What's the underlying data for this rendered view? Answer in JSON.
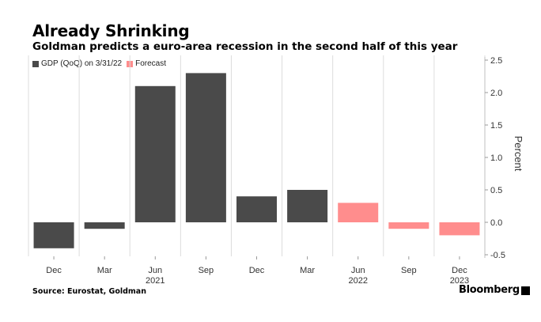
{
  "title": "Already Shrinking",
  "subtitle": "Goldman predicts a euro-area recession in the second half of this year",
  "legend": [
    {
      "label": "GDP (QoQ) on 3/31/22",
      "color": "#4a4a4a"
    },
    {
      "label": "Forecast",
      "color": "#ff8d8d"
    }
  ],
  "source": "Source: Eurostat, Goldman",
  "brand": "Bloomberg",
  "chart_data": {
    "type": "bar",
    "categories": [
      "Dec",
      "Mar",
      "Jun",
      "Sep",
      "Dec",
      "Mar",
      "Jun",
      "Sep",
      "Dec"
    ],
    "year_labels": [
      {
        "index": 2,
        "label": "2021"
      },
      {
        "index": 6,
        "label": "2022"
      },
      {
        "index": 8,
        "label": "2023"
      }
    ],
    "values": [
      -0.4,
      -0.1,
      2.1,
      2.3,
      0.4,
      0.5,
      0.3,
      -0.1,
      -0.2
    ],
    "series_of_bar": [
      "GDP (QoQ) on 3/31/22",
      "GDP (QoQ) on 3/31/22",
      "GDP (QoQ) on 3/31/22",
      "GDP (QoQ) on 3/31/22",
      "GDP (QoQ) on 3/31/22",
      "GDP (QoQ) on 3/31/22",
      "Forecast",
      "Forecast",
      "Forecast"
    ],
    "ylabel": "Percent",
    "ylim": [
      -0.5,
      2.5
    ],
    "yticks": [
      "2.5",
      "2.0",
      "1.5",
      "1.0",
      "0.5",
      "0.0",
      "-0.5"
    ],
    "ytick_values": [
      2.5,
      2.0,
      1.5,
      1.0,
      0.5,
      0.0,
      -0.5
    ],
    "grid": "vertical",
    "legend_position": "top-left",
    "colors": {
      "actual": "#4a4a4a",
      "forecast": "#ff8d8d",
      "grid": "#dcdcdc"
    }
  }
}
